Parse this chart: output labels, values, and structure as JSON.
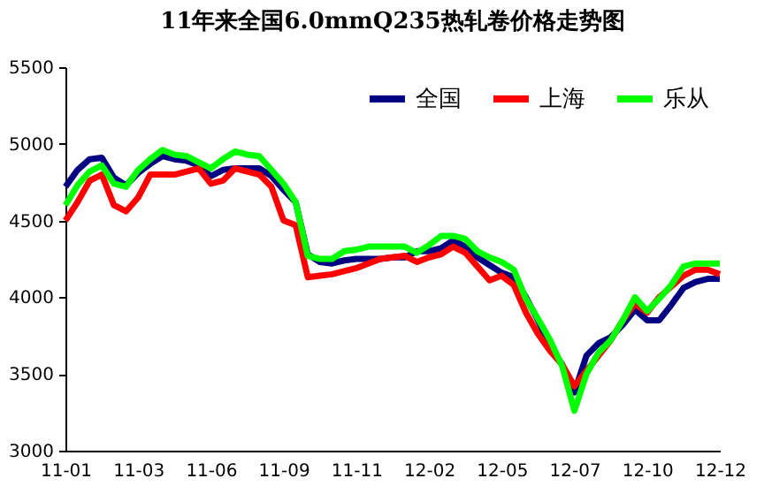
{
  "chart_data": {
    "type": "line",
    "title": "11年来全国6.0mmQ235热轧卷价格走势图",
    "categories": [
      "11-01",
      null,
      null,
      null,
      null,
      null,
      "11-03",
      null,
      null,
      null,
      null,
      null,
      "11-06",
      null,
      null,
      null,
      null,
      null,
      "11-09",
      null,
      null,
      null,
      null,
      null,
      "11-11",
      null,
      null,
      null,
      null,
      null,
      "12-02",
      null,
      null,
      null,
      null,
      null,
      "12-05",
      null,
      null,
      null,
      null,
      null,
      "12-07",
      null,
      null,
      null,
      null,
      null,
      "12-10",
      null,
      null,
      null,
      null,
      null,
      "12-12"
    ],
    "ylim": [
      3000,
      5500
    ],
    "yticks": [
      3000,
      3500,
      4000,
      4500,
      5000,
      5500
    ],
    "legend": "top right",
    "series": [
      {
        "name": "全国",
        "color": "#000080",
        "values": [
          4720,
          4830,
          4900,
          4910,
          4780,
          4730,
          4810,
          4870,
          4920,
          4900,
          4890,
          4860,
          4790,
          4830,
          4840,
          4840,
          4840,
          4790,
          4700,
          4620,
          4280,
          4230,
          4220,
          4240,
          4250,
          4250,
          4250,
          4260,
          4260,
          4300,
          4300,
          4320,
          4370,
          4330,
          4260,
          4210,
          4160,
          4130,
          4000,
          3850,
          3680,
          3560,
          3380,
          3620,
          3700,
          3740,
          3820,
          3920,
          3850,
          3850,
          3950,
          4060,
          4100,
          4120,
          4120
        ]
      },
      {
        "name": "上海",
        "color": "#ff0000",
        "values": [
          4500,
          4620,
          4760,
          4800,
          4600,
          4560,
          4650,
          4800,
          4800,
          4800,
          4820,
          4840,
          4740,
          4760,
          4840,
          4820,
          4800,
          4720,
          4500,
          4470,
          4130,
          4140,
          4150,
          4170,
          4190,
          4220,
          4250,
          4260,
          4270,
          4230,
          4260,
          4280,
          4330,
          4290,
          4200,
          4110,
          4140,
          4080,
          3900,
          3760,
          3650,
          3560,
          3420,
          3520,
          3620,
          3720,
          3850,
          3960,
          3900,
          4000,
          4070,
          4140,
          4180,
          4180,
          4150
        ]
      },
      {
        "name": "乐从",
        "color": "#00ff00",
        "values": [
          4600,
          4730,
          4820,
          4860,
          4740,
          4720,
          4830,
          4900,
          4960,
          4930,
          4920,
          4880,
          4840,
          4900,
          4950,
          4930,
          4920,
          4830,
          4740,
          4620,
          4270,
          4250,
          4250,
          4300,
          4310,
          4330,
          4330,
          4330,
          4330,
          4290,
          4340,
          4400,
          4400,
          4380,
          4300,
          4260,
          4230,
          4180,
          3990,
          3860,
          3720,
          3550,
          3260,
          3500,
          3640,
          3720,
          3850,
          4000,
          3910,
          3990,
          4080,
          4200,
          4220,
          4220,
          4220
        ]
      }
    ]
  }
}
